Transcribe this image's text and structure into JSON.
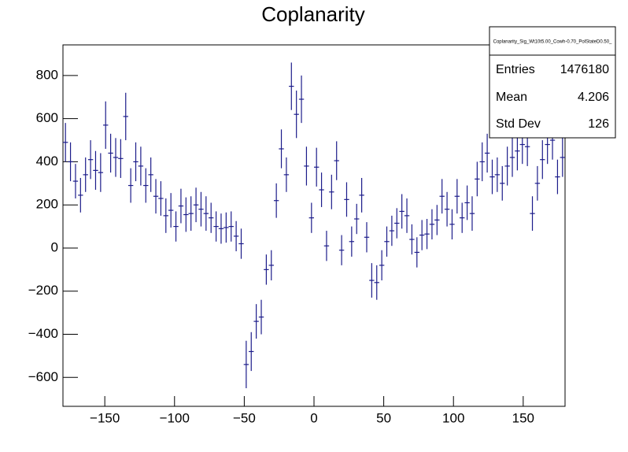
{
  "chart_data": {
    "type": "histogram",
    "title": "Coplanarity",
    "color": "#1c1c8a",
    "bins": [
      -180,
      -176.4,
      -172.8,
      -169.2,
      -165.6,
      -162,
      -158.4,
      -154.8,
      -151.2,
      -147.6,
      -144,
      -140.4,
      -136.8,
      -133.2,
      -129.6,
      -126,
      -122.4,
      -118.8,
      -115.2,
      -111.6,
      -108,
      -104.4,
      -100.8,
      -97.2,
      -93.6,
      -90,
      -86.4,
      -82.8,
      -79.2,
      -75.6,
      -72,
      -68.4,
      -64.8,
      -61.2,
      -57.6,
      -54,
      -50.4,
      -46.8,
      -43.2,
      -39.6,
      -36,
      -32.4,
      -28.8,
      -25.2,
      -21.6,
      -18,
      -14.4,
      -10.8,
      -7.2,
      -3.6,
      0,
      3.6,
      7.2,
      10.8,
      14.4,
      18,
      21.6,
      25.2,
      28.8,
      32.4,
      36,
      39.6,
      43.2,
      46.8,
      50.4,
      54,
      57.6,
      61.2,
      64.8,
      68.4,
      72,
      75.6,
      79.2,
      82.8,
      86.4,
      90,
      93.6,
      97.2,
      100.8,
      104.4,
      108,
      111.6,
      115.2,
      118.8,
      122.4,
      126,
      129.6,
      133.2,
      136.8,
      140.4,
      144,
      147.6,
      151.2,
      154.8,
      158.4,
      162,
      165.6,
      169.2,
      172.8,
      176.4,
      180
    ],
    "values": [
      490,
      400,
      310,
      245,
      340,
      410,
      360,
      350,
      570,
      440,
      420,
      415,
      610,
      290,
      400,
      380,
      290,
      340,
      240,
      230,
      150,
      175,
      100,
      195,
      155,
      160,
      200,
      180,
      160,
      140,
      100,
      90,
      95,
      100,
      55,
      20,
      -540,
      -480,
      -340,
      -320,
      -100,
      -80,
      220,
      460,
      340,
      750,
      620,
      690,
      380,
      140,
      375,
      270,
      10,
      260,
      405,
      -10,
      225,
      30,
      135,
      245,
      50,
      -150,
      -160,
      -80,
      30,
      80,
      115,
      170,
      150,
      40,
      -20,
      60,
      65,
      110,
      130,
      240,
      180,
      110,
      240,
      140,
      210,
      160,
      320,
      400,
      440,
      330,
      340,
      300,
      380,
      420,
      450,
      480,
      470,
      160,
      300,
      410,
      480,
      500,
      330,
      420
    ],
    "errors": [
      90,
      90,
      80,
      80,
      80,
      90,
      90,
      90,
      110,
      90,
      90,
      90,
      110,
      80,
      90,
      90,
      80,
      80,
      80,
      80,
      80,
      80,
      70,
      80,
      80,
      80,
      80,
      80,
      80,
      70,
      70,
      70,
      70,
      70,
      70,
      70,
      110,
      90,
      80,
      80,
      70,
      70,
      80,
      90,
      80,
      110,
      110,
      110,
      90,
      70,
      90,
      80,
      70,
      80,
      90,
      70,
      80,
      70,
      70,
      80,
      70,
      80,
      80,
      70,
      70,
      70,
      70,
      80,
      80,
      70,
      70,
      70,
      70,
      70,
      70,
      80,
      80,
      70,
      80,
      70,
      80,
      80,
      80,
      90,
      90,
      80,
      80,
      80,
      90,
      90,
      90,
      90,
      90,
      80,
      80,
      90,
      90,
      90,
      80,
      90
    ],
    "xlim": [
      -180,
      180
    ],
    "ylim": [
      -734,
      942
    ],
    "xticks": [
      {
        "value": -150,
        "label": "−150"
      },
      {
        "value": -100,
        "label": "−100"
      },
      {
        "value": -50,
        "label": "−50"
      },
      0,
      50,
      100,
      150
    ],
    "yticks": [
      {
        "value": -600,
        "label": "−600"
      },
      {
        "value": -400,
        "label": "−400"
      },
      {
        "value": -200,
        "label": "−200"
      },
      0,
      200,
      400,
      600,
      800
    ],
    "grid": false,
    "stats": {
      "name": "Coplanarity_Sig_Wt10t5.00_Cowh-0.70_PolStateD0.50_",
      "rows": [
        {
          "label": "Entries",
          "value": 1476180
        },
        {
          "label": "Mean",
          "value": 4.206
        },
        {
          "label": "Std Dev",
          "value": 126
        }
      ]
    }
  }
}
